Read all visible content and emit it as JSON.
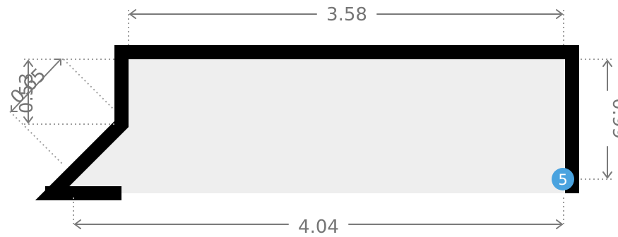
{
  "colors": {
    "profile_stroke": "#000000",
    "profile_fill": "#eeeeee",
    "dimension_line": "#7a7a7a",
    "extension_line": "#9e9e9e",
    "dimension_text": "#757575",
    "badge_fill": "#4aa3df",
    "badge_text": "#ffffff"
  },
  "dimensions": {
    "top_width": "3.58",
    "bottom_width": "4.04",
    "right_height": "0.99",
    "left_vertical": "0.53",
    "chamfer_length": "0.65"
  },
  "badge": {
    "label": "5"
  }
}
